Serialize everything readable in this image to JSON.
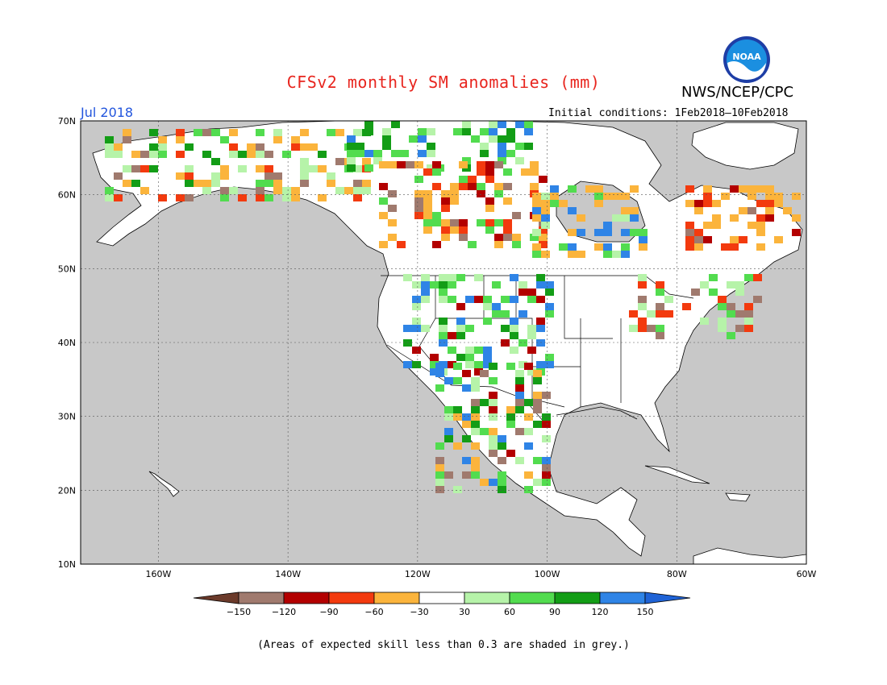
{
  "header": {
    "title": "CFSv2 monthly SM anomalies (mm)",
    "agency": "NWS/NCEP/CPC",
    "logo_text": "NOAA",
    "valid_month": "Jul 2018",
    "initial_conditions": "Initial conditions: 1Feb2018–10Feb2018"
  },
  "map": {
    "lat_range": [
      10,
      70
    ],
    "lon_range": [
      -172,
      -60
    ],
    "lat_labels": [
      "70N",
      "60N",
      "50N",
      "40N",
      "30N",
      "20N",
      "10N"
    ],
    "lon_labels": [
      "160W",
      "140W",
      "120W",
      "100W",
      "80W",
      "60W"
    ],
    "no_skill_color": "#c8c8c8",
    "gridlines": "dotted"
  },
  "colorbar": {
    "ticks": [
      "−150",
      "−120",
      "−90",
      "−60",
      "−30",
      "30",
      "60",
      "90",
      "120",
      "150"
    ],
    "colors": [
      "#6b3a2a",
      "#a07a6e",
      "#b30000",
      "#f33a0e",
      "#fbb43c",
      "#ffffff",
      "#b6f3a9",
      "#52dc4f",
      "#139d16",
      "#2f84e6",
      "#1f63d6"
    ]
  },
  "footnote": "(Areas of expected skill less than 0.3 are shaded in grey.)"
}
